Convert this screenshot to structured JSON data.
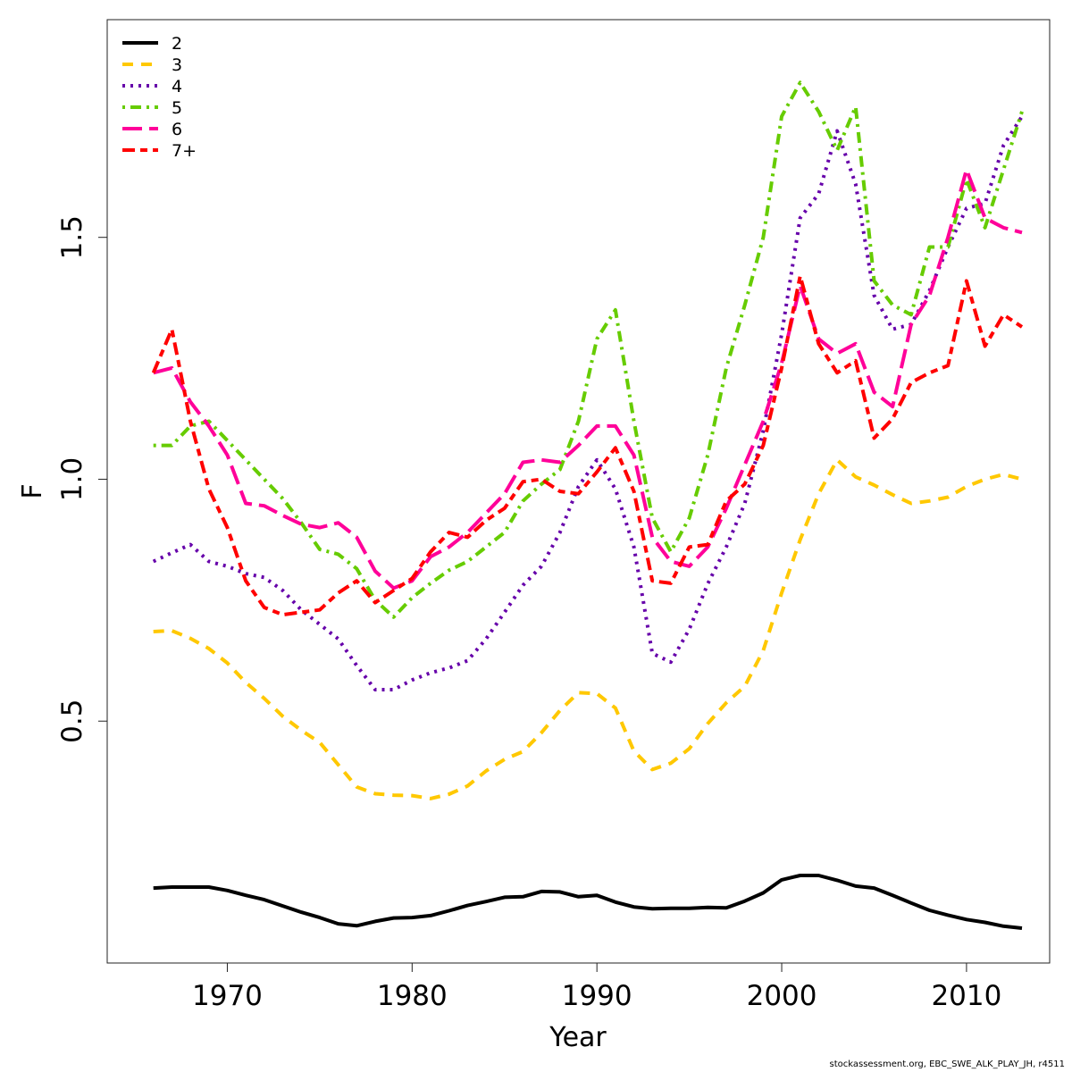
{
  "chart_data": {
    "type": "line",
    "title": "",
    "xlabel": "Year",
    "ylabel": "F",
    "xlim": [
      1963.5,
      2014.5
    ],
    "ylim": [
      0.0,
      1.95
    ],
    "x_ticks": [
      1970,
      1980,
      1990,
      2000,
      2010
    ],
    "x_tick_labels": [
      "1970",
      "1980",
      "1990",
      "2000",
      "2010"
    ],
    "y_ticks": [
      0.5,
      1.0,
      1.5
    ],
    "y_tick_labels": [
      "0.5",
      "1.0",
      "1.5"
    ],
    "legend_position": "top-left",
    "grid": false,
    "x": [
      1966,
      1967,
      1968,
      1969,
      1970,
      1971,
      1972,
      1973,
      1974,
      1975,
      1976,
      1977,
      1978,
      1979,
      1980,
      1981,
      1982,
      1983,
      1984,
      1985,
      1986,
      1987,
      1988,
      1989,
      1990,
      1991,
      1992,
      1993,
      1994,
      1995,
      1996,
      1997,
      1998,
      1999,
      2000,
      2001,
      2002,
      2003,
      2004,
      2005,
      2006,
      2007,
      2008,
      2009,
      2010,
      2011,
      2012,
      2013
    ],
    "series": [
      {
        "name": "2",
        "color": "#000000",
        "dash": "solid",
        "values": [
          0.155,
          0.157,
          0.157,
          0.157,
          0.15,
          0.14,
          0.131,
          0.118,
          0.105,
          0.094,
          0.081,
          0.077,
          0.086,
          0.093,
          0.094,
          0.098,
          0.108,
          0.119,
          0.127,
          0.136,
          0.137,
          0.148,
          0.147,
          0.137,
          0.14,
          0.126,
          0.116,
          0.112,
          0.113,
          0.113,
          0.115,
          0.114,
          0.128,
          0.145,
          0.172,
          0.181,
          0.181,
          0.171,
          0.159,
          0.155,
          0.14,
          0.124,
          0.109,
          0.099,
          0.09,
          0.084,
          0.076,
          0.072
        ]
      },
      {
        "name": "3",
        "color": "#FFC800",
        "dash": "dash",
        "values": [
          0.685,
          0.687,
          0.671,
          0.65,
          0.62,
          0.58,
          0.547,
          0.51,
          0.481,
          0.456,
          0.41,
          0.364,
          0.35,
          0.347,
          0.346,
          0.34,
          0.349,
          0.366,
          0.397,
          0.421,
          0.437,
          0.476,
          0.522,
          0.559,
          0.557,
          0.527,
          0.438,
          0.4,
          0.413,
          0.443,
          0.495,
          0.538,
          0.572,
          0.646,
          0.765,
          0.875,
          0.97,
          1.04,
          1.005,
          0.988,
          0.968,
          0.95,
          0.955,
          0.963,
          0.985,
          1.0,
          1.01,
          1.0
        ]
      },
      {
        "name": "4",
        "color": "#6600AA",
        "dash": "dot",
        "values": [
          0.83,
          0.848,
          0.865,
          0.83,
          0.82,
          0.805,
          0.797,
          0.77,
          0.73,
          0.7,
          0.67,
          0.615,
          0.565,
          0.565,
          0.585,
          0.6,
          0.61,
          0.625,
          0.67,
          0.725,
          0.781,
          0.82,
          0.89,
          0.985,
          1.04,
          0.98,
          0.86,
          0.64,
          0.622,
          0.69,
          0.784,
          0.86,
          0.95,
          1.1,
          1.3,
          1.54,
          1.59,
          1.72,
          1.61,
          1.38,
          1.31,
          1.32,
          1.39,
          1.48,
          1.56,
          1.57,
          1.69,
          1.75
        ]
      },
      {
        "name": "5",
        "color": "#66CC00",
        "dash": "dotdash",
        "values": [
          1.07,
          1.07,
          1.11,
          1.12,
          1.08,
          1.04,
          1.0,
          0.96,
          0.91,
          0.855,
          0.845,
          0.815,
          0.75,
          0.715,
          0.755,
          0.785,
          0.812,
          0.83,
          0.86,
          0.89,
          0.955,
          0.99,
          1.02,
          1.12,
          1.29,
          1.35,
          1.12,
          0.92,
          0.85,
          0.92,
          1.05,
          1.23,
          1.36,
          1.5,
          1.75,
          1.82,
          1.76,
          1.68,
          1.77,
          1.41,
          1.36,
          1.34,
          1.48,
          1.48,
          1.62,
          1.52,
          1.64,
          1.76
        ]
      },
      {
        "name": "6",
        "color": "#FF0099",
        "dash": "longdash",
        "values": [
          1.22,
          1.23,
          1.16,
          1.11,
          1.05,
          0.95,
          0.945,
          0.925,
          0.907,
          0.9,
          0.91,
          0.88,
          0.81,
          0.775,
          0.79,
          0.84,
          0.86,
          0.89,
          0.93,
          0.97,
          1.035,
          1.04,
          1.035,
          1.07,
          1.11,
          1.11,
          1.05,
          0.88,
          0.83,
          0.82,
          0.86,
          0.94,
          1.03,
          1.12,
          1.24,
          1.4,
          1.29,
          1.26,
          1.28,
          1.18,
          1.15,
          1.32,
          1.38,
          1.5,
          1.64,
          1.54,
          1.52,
          1.51
        ]
      },
      {
        "name": "7+",
        "color": "#FF0000",
        "dash": "twodash",
        "values": [
          1.22,
          1.31,
          1.12,
          0.98,
          0.9,
          0.79,
          0.735,
          0.72,
          0.725,
          0.73,
          0.765,
          0.79,
          0.745,
          0.77,
          0.795,
          0.85,
          0.89,
          0.88,
          0.915,
          0.94,
          0.995,
          1.0,
          0.975,
          0.97,
          1.015,
          1.065,
          0.975,
          0.79,
          0.785,
          0.86,
          0.865,
          0.955,
          0.99,
          1.07,
          1.23,
          1.42,
          1.28,
          1.22,
          1.245,
          1.085,
          1.125,
          1.2,
          1.22,
          1.235,
          1.41,
          1.275,
          1.34,
          1.315
        ]
      }
    ]
  },
  "credit": "stockassessment.org, EBC_SWE_ALK_PLAY_JH, r4511"
}
